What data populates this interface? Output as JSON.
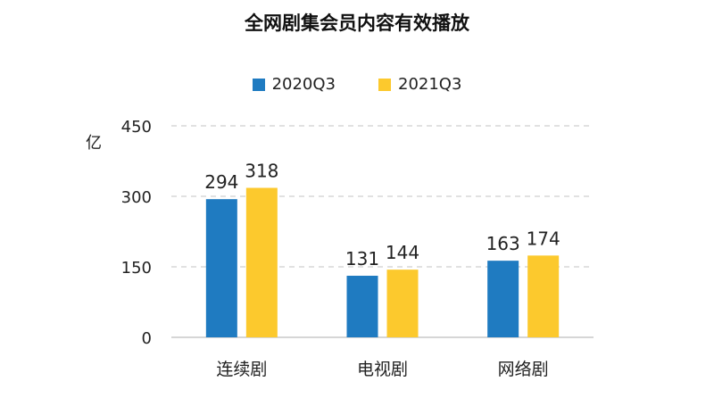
{
  "chart_data": {
    "type": "bar",
    "title": "全网剧集会员内容有效播放",
    "unit_label": "亿",
    "categories": [
      "连续剧",
      "电视剧",
      "网络剧"
    ],
    "series": [
      {
        "name": "2020Q3",
        "values": [
          294,
          131,
          163
        ],
        "color": "#1f7bc1"
      },
      {
        "name": "2021Q3",
        "values": [
          318,
          144,
          174
        ],
        "color": "#fcc92d"
      }
    ],
    "ylim": [
      0,
      450
    ],
    "yticks": [
      "0",
      "150",
      "300",
      "450"
    ],
    "grid": true,
    "legend_position": "top-center"
  }
}
